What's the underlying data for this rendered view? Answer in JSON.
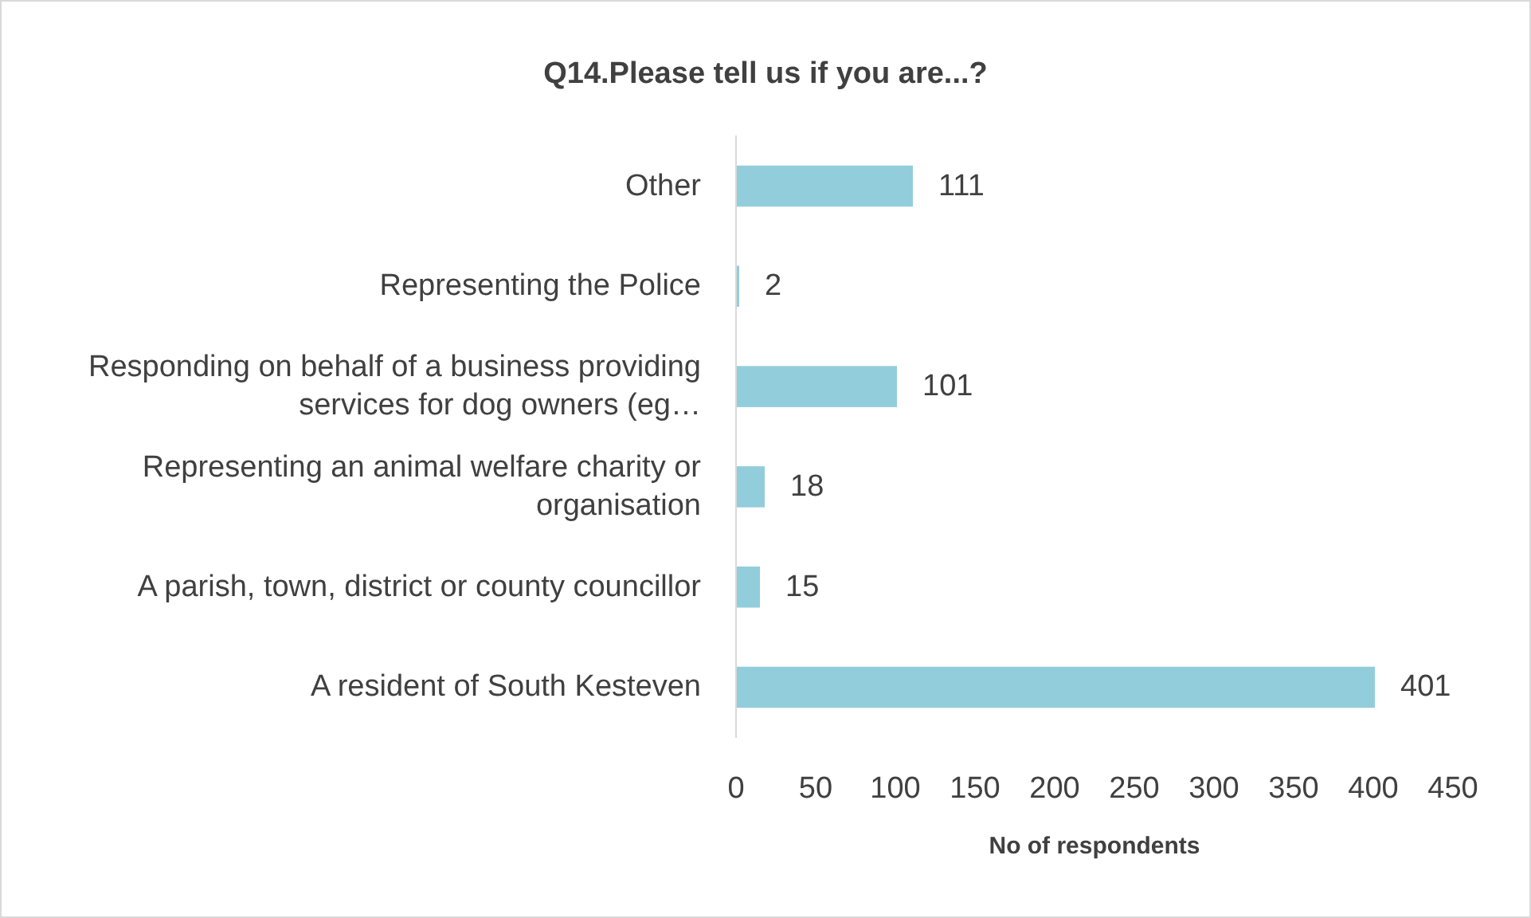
{
  "chart_data": {
    "type": "bar",
    "orientation": "horizontal",
    "title": "Q14.Please tell us if you are...?",
    "xlabel": "No of respondents",
    "categories": [
      "Other",
      "Representing the Police",
      "Responding on behalf of a business providing services for dog owners (eg…",
      "Representing an animal welfare charity or organisation",
      "A parish, town, district or county councillor",
      "A resident of South Kesteven"
    ],
    "values": [
      111,
      2,
      101,
      18,
      15,
      401
    ],
    "color": "#92cddc",
    "xlim": [
      0,
      450
    ],
    "xticks": [
      0,
      50,
      100,
      150,
      200,
      250,
      300,
      350,
      400,
      450
    ],
    "grid": false,
    "data_labels": true
  }
}
